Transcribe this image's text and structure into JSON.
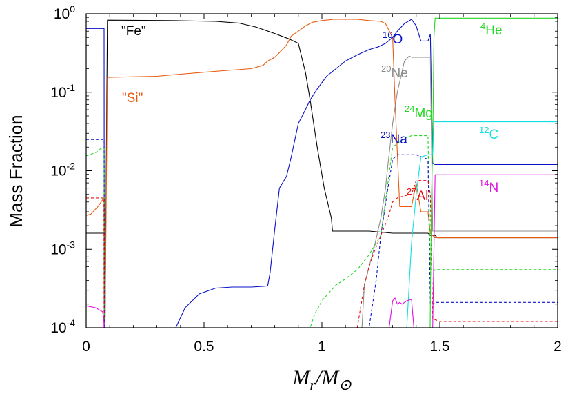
{
  "chart_data": {
    "type": "line",
    "xlabel": "M_r/M_⊙",
    "ylabel": "Mass Fraction",
    "xlim": [
      0,
      2
    ],
    "ylim": [
      0.0001,
      1
    ],
    "yscale": "log",
    "grid": false,
    "x_ticks": [
      "0",
      "0.5",
      "1",
      "1.5",
      "2"
    ],
    "y_ticks": [
      {
        "base": "10",
        "exp": "0"
      },
      {
        "base": "10",
        "exp": "-1"
      },
      {
        "base": "10",
        "exp": "-2"
      },
      {
        "base": "10",
        "exp": "-3"
      },
      {
        "base": "10",
        "exp": "-4"
      }
    ],
    "annotations": [
      {
        "id": "fe",
        "sup": "",
        "text": "\"Fe\"",
        "color": "#000000"
      },
      {
        "id": "si",
        "sup": "",
        "text": "\"Si\"",
        "color": "#e85a10"
      },
      {
        "id": "o16",
        "sup": "16",
        "text": "O",
        "color": "#0a10c8"
      },
      {
        "id": "ne20",
        "sup": "20",
        "text": "Ne",
        "color": "#8c8c8c"
      },
      {
        "id": "mg24",
        "sup": "24",
        "text": "Mg",
        "color": "#22d822"
      },
      {
        "id": "na23",
        "sup": "23",
        "text": "Na",
        "color": "#0a10c8"
      },
      {
        "id": "al27",
        "sup": "27",
        "text": "Al",
        "color": "#e81010"
      },
      {
        "id": "he4",
        "sup": "4",
        "text": "He",
        "color": "#22d822"
      },
      {
        "id": "c12",
        "sup": "12",
        "text": "C",
        "color": "#10e0e0"
      },
      {
        "id": "n14",
        "sup": "14",
        "text": "N",
        "color": "#e010e0"
      }
    ],
    "series": [
      {
        "id": "fe",
        "color": "#000000",
        "dash": false,
        "x": [
          0,
          0.075,
          0.077,
          0.078,
          0.08,
          0.09,
          0.35,
          0.55,
          0.65,
          0.72,
          0.8,
          0.86,
          0.9,
          0.93,
          0.95,
          0.98,
          1.01,
          1.04,
          1.045,
          1.1,
          1.2,
          1.3,
          1.4,
          1.45,
          1.46,
          1.47,
          1.48,
          1.49,
          1.5,
          1.7,
          2
        ],
        "y": [
          0.0016,
          0.0016,
          0.0016,
          0.0001,
          0.0001,
          0.83,
          0.82,
          0.8,
          0.76,
          0.68,
          0.56,
          0.48,
          0.42,
          0.18,
          0.08,
          0.02,
          0.006,
          0.0025,
          0.0017,
          0.0017,
          0.0017,
          0.0016,
          0.0016,
          0.0016,
          0.0015,
          0.0015,
          0.0015,
          0.0014,
          0.0014,
          0.0014,
          0.0014
        ]
      },
      {
        "id": "si",
        "color": "#e85a10",
        "dash": false,
        "x": [
          0,
          0.02,
          0.05,
          0.075,
          0.077,
          0.078,
          0.08,
          0.09,
          0.3,
          0.4,
          0.5,
          0.6,
          0.7,
          0.75,
          0.77,
          0.8,
          0.82,
          0.85,
          0.87,
          0.9,
          0.93,
          0.96,
          1.0,
          1.05,
          1.1,
          1.15,
          1.2,
          1.25,
          1.27,
          1.3,
          1.31,
          1.33,
          1.37,
          1.38,
          1.4,
          1.42,
          1.45,
          1.46,
          1.47,
          1.48,
          1.5,
          1.6,
          2
        ],
        "y": [
          0.0027,
          0.0028,
          0.0035,
          0.0045,
          0.0045,
          0.0001,
          0.0001,
          0.155,
          0.16,
          0.17,
          0.18,
          0.19,
          0.2,
          0.22,
          0.25,
          0.28,
          0.32,
          0.4,
          0.52,
          0.6,
          0.7,
          0.78,
          0.82,
          0.85,
          0.85,
          0.85,
          0.82,
          0.8,
          0.75,
          0.5,
          0.08,
          0.0035,
          0.0035,
          0.0035,
          0.007,
          0.003,
          0.003,
          0.0016,
          0.0015,
          0.0014,
          0.0014,
          0.0014,
          0.0014
        ]
      },
      {
        "id": "o16",
        "color": "#0a10c8",
        "dash": false,
        "x": [
          0,
          0.075,
          0.076,
          0.077,
          0.08,
          0.38,
          0.42,
          0.48,
          0.55,
          0.62,
          0.7,
          0.77,
          0.78,
          0.8,
          0.82,
          0.85,
          0.87,
          0.9,
          0.93,
          0.95,
          0.98,
          1.02,
          1.06,
          1.1,
          1.15,
          1.2,
          1.24,
          1.27,
          1.3,
          1.32,
          1.35,
          1.38,
          1.4,
          1.42,
          1.44,
          1.45,
          1.46,
          1.47,
          1.48,
          1.5,
          2
        ],
        "y": [
          0.65,
          0.65,
          0.65,
          0.0001,
          0.0001,
          0.0001,
          0.00018,
          0.00027,
          0.00032,
          0.00033,
          0.00033,
          0.00034,
          0.0005,
          0.0018,
          0.006,
          0.0085,
          0.015,
          0.04,
          0.06,
          0.08,
          0.11,
          0.16,
          0.2,
          0.25,
          0.3,
          0.35,
          0.38,
          0.42,
          0.5,
          0.6,
          0.75,
          0.85,
          0.7,
          0.45,
          0.45,
          0.45,
          0.55,
          0.0125,
          0.012,
          0.012,
          0.012
        ]
      },
      {
        "id": "ne20",
        "color": "#8c8c8c",
        "dash": false,
        "x": [
          1.17,
          1.18,
          1.2,
          1.22,
          1.25,
          1.27,
          1.28,
          1.3,
          1.32,
          1.35,
          1.37,
          1.38,
          1.4,
          1.45,
          1.46,
          1.47,
          1.48,
          1.5,
          2
        ],
        "y": [
          0.0001,
          0.00035,
          0.0006,
          0.001,
          0.0025,
          0.006,
          0.012,
          0.04,
          0.1,
          0.25,
          0.29,
          0.28,
          0.28,
          0.28,
          0.28,
          0.0017,
          0.0017,
          0.0017,
          0.0017
        ]
      },
      {
        "id": "mg24",
        "color": "#22d822",
        "dash": true,
        "x": [
          0,
          0.04,
          0.06,
          0.075,
          0.076,
          0.077,
          0.95,
          0.97,
          1.0,
          1.03,
          1.06,
          1.1,
          1.15,
          1.2,
          1.25,
          1.3,
          1.35,
          1.38,
          1.4,
          1.42,
          1.45,
          1.46,
          1.47,
          1.48,
          1.5,
          2
        ],
        "y": [
          0.0155,
          0.017,
          0.019,
          0.019,
          0.019,
          0.0001,
          0.0001,
          0.00015,
          0.00022,
          0.00028,
          0.00035,
          0.00042,
          0.00055,
          0.00085,
          0.0015,
          0.02,
          0.026,
          0.028,
          0.028,
          0.028,
          0.028,
          0.0005,
          0.0005,
          0.00055,
          0.00055,
          0.00055
        ]
      },
      {
        "id": "na23",
        "color": "#0a10c8",
        "dash": true,
        "x": [
          0,
          0.07,
          0.075,
          0.076,
          0.077,
          1.2,
          1.23,
          1.25,
          1.28,
          1.3,
          1.32,
          1.35,
          1.38,
          1.4,
          1.45,
          1.46,
          1.47,
          1.48,
          1.5,
          2
        ],
        "y": [
          0.025,
          0.025,
          0.025,
          0.025,
          0.0001,
          0.0001,
          0.0004,
          0.0015,
          0.006,
          0.014,
          0.016,
          0.016,
          0.016,
          0.016,
          0.014,
          0.0002,
          0.0002,
          0.00021,
          0.00021,
          0.00021
        ]
      },
      {
        "id": "al27",
        "color": "#e81010",
        "dash": true,
        "x": [
          0,
          0.07,
          0.075,
          0.076,
          1.15,
          1.18,
          1.2,
          1.22,
          1.25,
          1.28,
          1.3,
          1.32,
          1.35,
          1.38,
          1.4,
          1.42,
          1.45,
          1.46,
          1.47,
          1.5,
          2
        ],
        "y": [
          0.0045,
          0.0045,
          0.0045,
          0.0001,
          0.0001,
          0.00035,
          0.0006,
          0.0009,
          0.0015,
          0.0025,
          0.004,
          0.0045,
          0.0048,
          0.005,
          0.0075,
          0.0075,
          0.0075,
          0.005,
          0.00013,
          0.00012,
          0.00012
        ]
      },
      {
        "id": "he4",
        "color": "#22d822",
        "dash": false,
        "x": [
          1.459,
          1.46,
          1.465,
          1.47,
          1.475,
          1.48,
          1.6,
          1.8,
          2
        ],
        "y": [
          0.0001,
          0.0002,
          0.005,
          0.02,
          0.5,
          0.88,
          0.88,
          0.88,
          0.88
        ]
      },
      {
        "id": "c12",
        "color": "#10e0e0",
        "dash": false,
        "x": [
          1.36,
          1.38,
          1.4,
          1.42,
          1.45,
          1.46,
          1.47,
          1.475,
          1.48,
          1.6,
          2
        ],
        "y": [
          0.0001,
          0.0012,
          0.005,
          0.015,
          0.016,
          0.016,
          0.016,
          0.042,
          0.042,
          0.042,
          0.042
        ]
      },
      {
        "id": "n14",
        "color": "#e010e0",
        "dash": false,
        "x": [
          0,
          0.04,
          0.07,
          0.075,
          0.076,
          1.28,
          1.285,
          1.3,
          1.31,
          1.32,
          1.33,
          1.34,
          1.36,
          1.38,
          1.39,
          1.4,
          1.47,
          1.48,
          1.5,
          2
        ],
        "y": [
          0.00019,
          0.00018,
          0.00016,
          0.00012,
          0.0001,
          0.0001,
          0.0001,
          0.00022,
          0.00024,
          0.0002,
          0.00021,
          0.0002,
          0.00022,
          0.00023,
          0.0001,
          0.0001,
          0.0001,
          0.0089,
          0.0089,
          0.0089
        ]
      }
    ]
  }
}
